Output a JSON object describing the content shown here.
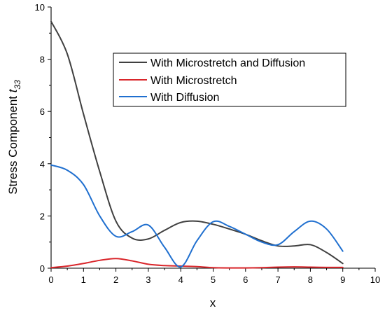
{
  "chart_data": {
    "type": "line",
    "xlabel": "x",
    "ylabel_main": "Stress Component ",
    "ylabel_sym": "t",
    "ylabel_sub": "33",
    "xlim": [
      0,
      10
    ],
    "ylim": [
      0,
      10
    ],
    "x_ticks": [
      "0",
      "1",
      "2",
      "3",
      "4",
      "5",
      "6",
      "7",
      "8",
      "9",
      "10"
    ],
    "y_ticks": [
      "0",
      "2",
      "4",
      "6",
      "8",
      "10"
    ],
    "grid": false,
    "legend_position": "top-right",
    "series": [
      {
        "name": "With Microstretch and Diffusion",
        "color": "#404040",
        "x": [
          0,
          0.5,
          1,
          1.5,
          2,
          2.5,
          3,
          3.5,
          4,
          4.5,
          5,
          5.5,
          6,
          6.5,
          7,
          7.5,
          8,
          8.5,
          9
        ],
        "y": [
          9.45,
          8.2,
          5.9,
          3.7,
          1.8,
          1.15,
          1.12,
          1.45,
          1.75,
          1.8,
          1.68,
          1.5,
          1.3,
          1.05,
          0.85,
          0.85,
          0.9,
          0.6,
          0.18
        ]
      },
      {
        "name": "With Microstretch",
        "color": "#d9262b",
        "x": [
          0,
          0.5,
          1,
          1.5,
          2,
          2.5,
          3,
          3.5,
          4,
          4.5,
          5,
          5.5,
          6,
          6.5,
          7,
          7.5,
          8,
          8.5,
          9
        ],
        "y": [
          0.02,
          0.08,
          0.18,
          0.3,
          0.37,
          0.28,
          0.15,
          0.1,
          0.08,
          0.06,
          0.02,
          0.01,
          0.01,
          0.02,
          0.04,
          0.05,
          0.04,
          0.03,
          0.03
        ]
      },
      {
        "name": "With Diffusion",
        "color": "#1f6fcf",
        "x": [
          0,
          0.5,
          1,
          1.5,
          2,
          2.5,
          3,
          3.5,
          4,
          4.5,
          5,
          5.5,
          6,
          6.5,
          7,
          7.5,
          8,
          8.5,
          9
        ],
        "y": [
          3.95,
          3.75,
          3.2,
          2.0,
          1.22,
          1.4,
          1.65,
          0.8,
          0.05,
          1.05,
          1.78,
          1.6,
          1.3,
          1.0,
          0.9,
          1.4,
          1.8,
          1.5,
          0.65
        ]
      }
    ]
  }
}
